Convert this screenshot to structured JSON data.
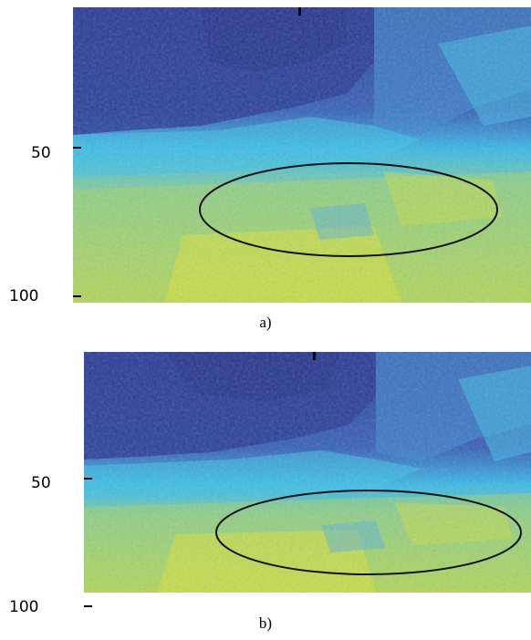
{
  "panels": [
    {
      "caption": "a)",
      "y_ticks": [
        "50",
        "100"
      ]
    },
    {
      "caption": "b)",
      "y_ticks": [
        "50",
        "100"
      ]
    }
  ],
  "colors": {
    "deep_blue": "#2a3f9a",
    "mid_blue": "#3b7fd0",
    "cyan": "#35c6e8",
    "teal": "#6cc4b0",
    "yellow_green": "#c8dc4a",
    "contour": "#111111"
  }
}
